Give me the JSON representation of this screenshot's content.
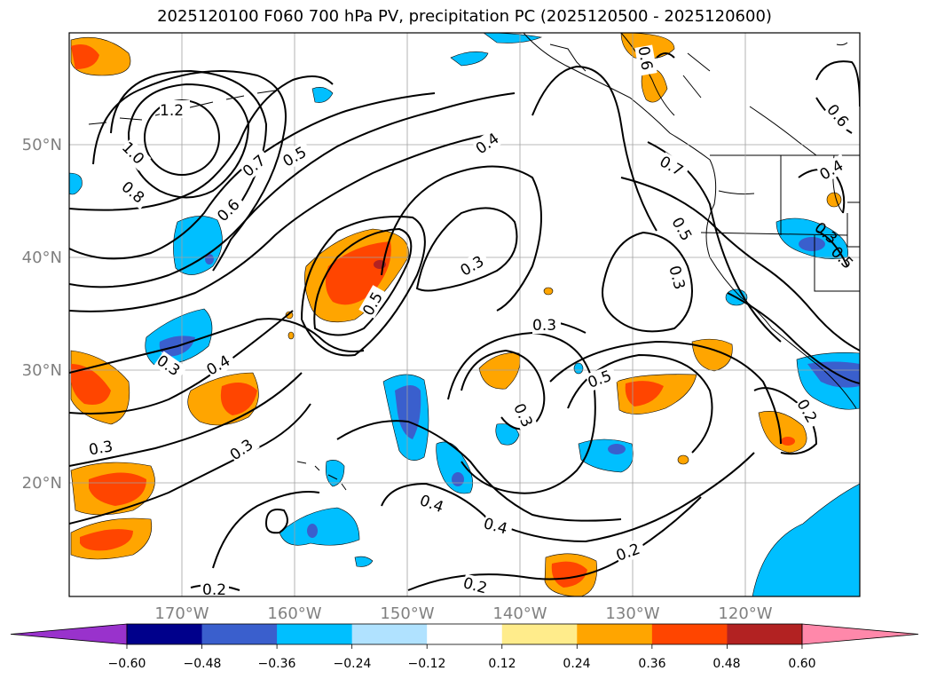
{
  "title": "2025120100 F060 700 hPa PV, precipitation PC (2025120500 - 2025120600)",
  "map": {
    "lat_labels": [
      "50°N",
      "40°N",
      "30°N",
      "20°N"
    ],
    "lon_labels": [
      "170°W",
      "160°W",
      "150°W",
      "140°W",
      "130°W",
      "120°W"
    ],
    "contour_labels": [
      "1.2",
      "1.0",
      "0.8",
      "0.7",
      "0.6",
      "0.5",
      "0.4",
      "0.3",
      "0.5",
      "0.4",
      "0.3",
      "0.3",
      "0.2",
      "0.2",
      "0.4",
      "0.4",
      "0.3",
      "0.5",
      "0.3",
      "0.5",
      "0.2",
      "0.7",
      "0.6",
      "0.4",
      "0.6",
      "0.3",
      "0.3",
      "0.2",
      "0.3",
      "0.5"
    ]
  },
  "colorbar": {
    "tick_labels": [
      "−0.60",
      "−0.48",
      "−0.36",
      "−0.24",
      "−0.12",
      "0.12",
      "0.24",
      "0.36",
      "0.48",
      "0.60"
    ],
    "colors": [
      "#9932cc",
      "#00008b",
      "#3a5fcd",
      "#00bfff",
      "#b0e2ff",
      "#ffffff",
      "#ffec8b",
      "#ffa500",
      "#ff4500",
      "#b22222",
      "#ff88aa"
    ]
  }
}
